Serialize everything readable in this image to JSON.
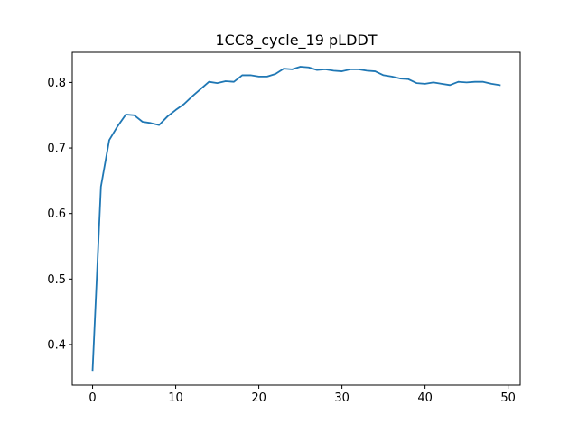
{
  "chart_data": {
    "type": "line",
    "title": "1CC8_cycle_19 pLDDT",
    "xlabel": "",
    "ylabel": "",
    "xlim": [
      -2.45,
      51.45
    ],
    "ylim": [
      0.338,
      0.846
    ],
    "xticks": [
      0,
      10,
      20,
      30,
      40,
      50
    ],
    "yticks": [
      0.4,
      0.5,
      0.6,
      0.7,
      0.8
    ],
    "xtick_labels": [
      "0",
      "10",
      "20",
      "30",
      "40",
      "50"
    ],
    "ytick_labels": [
      "0.4",
      "0.5",
      "0.6",
      "0.7",
      "0.8"
    ],
    "grid": false,
    "line_color": "#1f77b4",
    "series": [
      {
        "x": [
          0,
          1,
          2,
          3,
          4,
          5,
          6,
          7,
          8,
          9,
          10,
          11,
          12,
          13,
          14,
          15,
          16,
          17,
          18,
          19,
          20,
          21,
          22,
          23,
          24,
          25,
          26,
          27,
          28,
          29,
          30,
          31,
          32,
          33,
          34,
          35,
          36,
          37,
          38,
          39,
          40,
          41,
          42,
          43,
          44,
          45,
          46,
          47,
          48,
          49
        ],
        "values": [
          0.361,
          0.641,
          0.712,
          0.733,
          0.751,
          0.75,
          0.74,
          0.738,
          0.735,
          0.748,
          0.758,
          0.767,
          0.779,
          0.79,
          0.801,
          0.799,
          0.802,
          0.801,
          0.811,
          0.811,
          0.809,
          0.809,
          0.813,
          0.821,
          0.82,
          0.824,
          0.823,
          0.819,
          0.82,
          0.818,
          0.817,
          0.82,
          0.82,
          0.818,
          0.817,
          0.811,
          0.809,
          0.806,
          0.805,
          0.799,
          0.798,
          0.8,
          0.798,
          0.796,
          0.801,
          0.8,
          0.801,
          0.801,
          0.798,
          0.796
        ]
      }
    ]
  }
}
